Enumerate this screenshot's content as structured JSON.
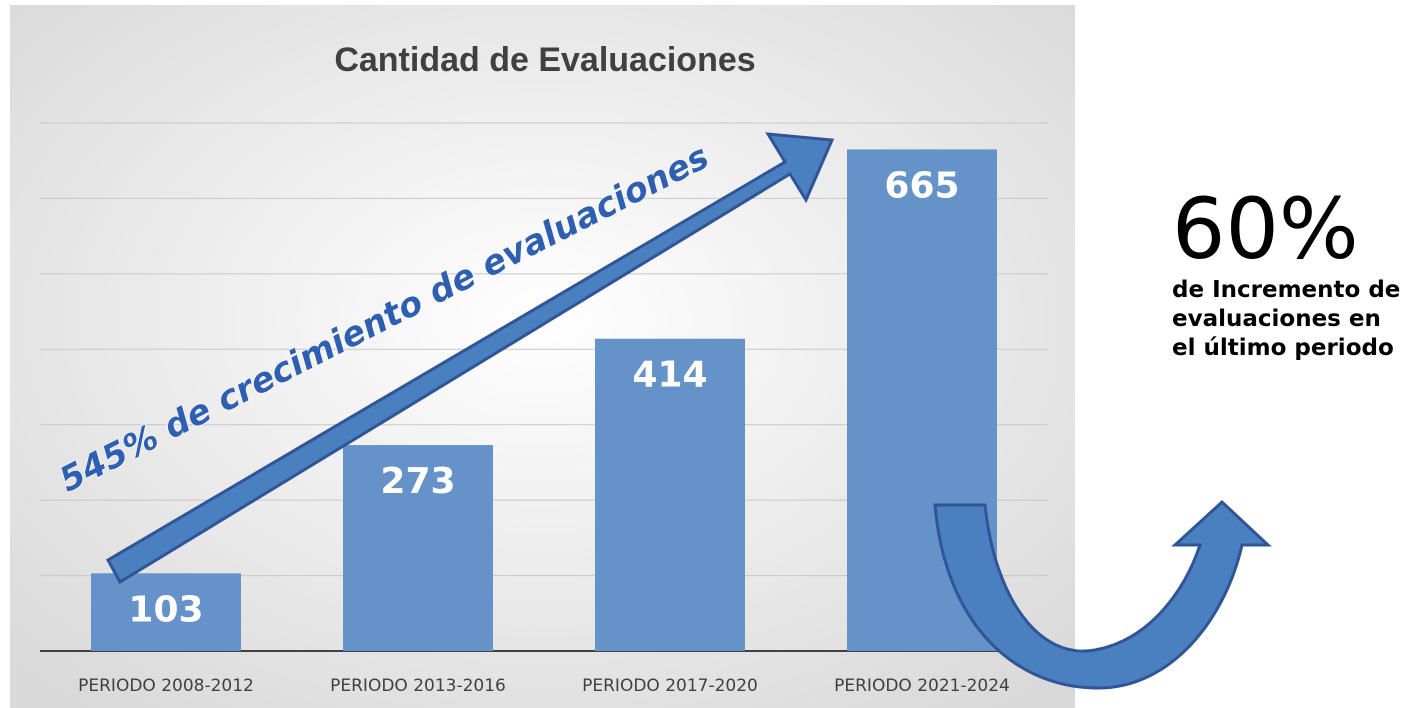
{
  "chart_data": {
    "type": "bar",
    "title": "Cantidad de Evaluaciones",
    "categories": [
      "PERIODO 2008-2012",
      "PERIODO 2013-2016",
      "PERIODO 2017-2020",
      "PERIODO 2021-2024"
    ],
    "values": [
      103,
      273,
      414,
      665
    ],
    "color": "#6592c9",
    "ylim": [
      0,
      700
    ],
    "yticks": [
      0,
      100,
      200,
      300,
      400,
      500,
      600,
      700
    ],
    "grid": true,
    "annotations": [
      "545% de crecimiento de evaluaciones",
      "60%",
      "de Incremento de evaluaciones en el último periodo"
    ]
  }
}
